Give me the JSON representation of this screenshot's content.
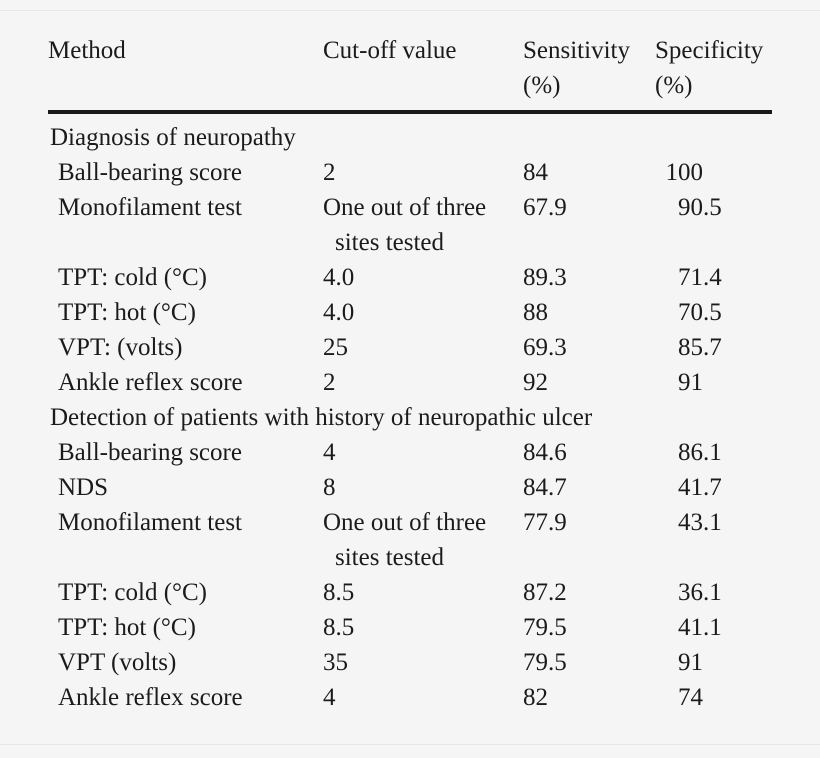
{
  "page": {
    "background_color": "#f5f5f5",
    "text_color": "#1b1b1b",
    "rule_color": "#1a1a1a"
  },
  "table": {
    "header": {
      "method": "Method",
      "cutoff": "Cut-off value",
      "sensitivity_line1": "Sensitivity",
      "sensitivity_line2": "(%)",
      "specificity_line1": "Specificity",
      "specificity_line2": "(%)"
    },
    "sections": [
      {
        "title": "Diagnosis of neuropathy",
        "rows": [
          {
            "method": "Ball-bearing score",
            "cutoff": [
              "2"
            ],
            "sensitivity": "84",
            "specificity": "100"
          },
          {
            "method": "Monofilament test",
            "cutoff": [
              "One out of three",
              "sites tested"
            ],
            "sensitivity": "67.9",
            "specificity": "90.5"
          },
          {
            "method": "TPT: cold (°C)",
            "cutoff": [
              "4.0"
            ],
            "sensitivity": "89.3",
            "specificity": "71.4"
          },
          {
            "method": "TPT: hot (°C)",
            "cutoff": [
              "4.0"
            ],
            "sensitivity": "88",
            "specificity": "70.5"
          },
          {
            "method": "VPT: (volts)",
            "cutoff": [
              "25"
            ],
            "sensitivity": "69.3",
            "specificity": "85.7"
          },
          {
            "method": "Ankle reflex score",
            "cutoff": [
              "2"
            ],
            "sensitivity": "92",
            "specificity": "91"
          }
        ]
      },
      {
        "title": "Detection of patients with history of neuropathic ulcer",
        "rows": [
          {
            "method": "Ball-bearing score",
            "cutoff": [
              "4"
            ],
            "sensitivity": "84.6",
            "specificity": "86.1"
          },
          {
            "method": "NDS",
            "cutoff": [
              "8"
            ],
            "sensitivity": "84.7",
            "specificity": "41.7"
          },
          {
            "method": "Monofilament test",
            "cutoff": [
              "One out of three",
              "sites tested"
            ],
            "sensitivity": "77.9",
            "specificity": "43.1"
          },
          {
            "method": "TPT: cold (°C)",
            "cutoff": [
              "8.5"
            ],
            "sensitivity": "87.2",
            "specificity": "36.1"
          },
          {
            "method": "TPT: hot (°C)",
            "cutoff": [
              "8.5"
            ],
            "sensitivity": "79.5",
            "specificity": "41.1"
          },
          {
            "method": "VPT (volts)",
            "cutoff": [
              "35"
            ],
            "sensitivity": "79.5",
            "specificity": "91"
          },
          {
            "method": "Ankle reflex score",
            "cutoff": [
              "4"
            ],
            "sensitivity": "82",
            "specificity": "74"
          }
        ]
      }
    ]
  }
}
